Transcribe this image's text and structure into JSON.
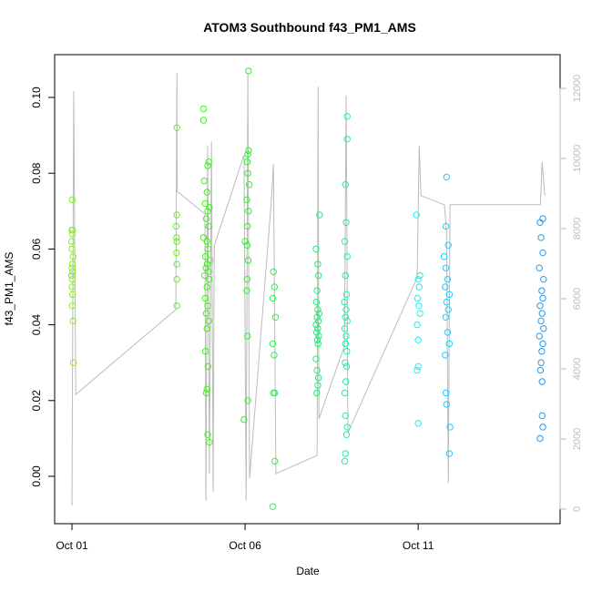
{
  "chart_data": {
    "type": "scatter",
    "title": "ATOM3 Southbound f43_PM1_AMS",
    "xlabel": "Date",
    "ylabel": "f43_PM1_AMS",
    "xlim": [
      -0.5,
      14.1
    ],
    "ylim": [
      -0.0125,
      0.1113
    ],
    "y2lim": [
      -416,
      12961
    ],
    "xticks": [
      {
        "value": 0,
        "label": "Oct 01"
      },
      {
        "value": 5,
        "label": "Oct 06"
      },
      {
        "value": 10,
        "label": "Oct 11"
      }
    ],
    "yticks": [
      {
        "value": 0,
        "label": "0.00"
      },
      {
        "value": 0.02,
        "label": "0.02"
      },
      {
        "value": 0.04,
        "label": "0.04"
      },
      {
        "value": 0.06,
        "label": "0.06"
      },
      {
        "value": 0.08,
        "label": "0.08"
      },
      {
        "value": 0.1,
        "label": "0.10"
      }
    ],
    "y2ticks": [
      0,
      2000,
      4000,
      6000,
      8000,
      10000,
      12000
    ],
    "series": [
      {
        "color": "#88ee22",
        "x": [
          0.01,
          0.0,
          0.02,
          0.01,
          -0.01,
          0.0,
          0.03,
          0.01,
          0.0,
          0.02,
          -0.01,
          0.01,
          0.0,
          0.02,
          0.01,
          0.03,
          0.04
        ],
        "values": [
          0.073,
          0.065,
          0.065,
          0.064,
          0.062,
          0.06,
          0.058,
          0.056,
          0.055,
          0.054,
          0.053,
          0.052,
          0.05,
          0.048,
          0.045,
          0.041,
          0.03
        ]
      },
      {
        "color": "#66ee22",
        "x": [
          3.03,
          3.03,
          3.01,
          3.02,
          3.03,
          3.02,
          3.03,
          3.03,
          3.03
        ],
        "values": [
          0.092,
          0.069,
          0.066,
          0.063,
          0.062,
          0.059,
          0.056,
          0.052,
          0.045
        ]
      },
      {
        "color": "#44ee22",
        "x": [
          3.8,
          3.8,
          3.95,
          3.92,
          3.82,
          3.9,
          3.85,
          3.97,
          3.92,
          3.88,
          3.95,
          3.8,
          3.9,
          3.93,
          3.86,
          3.98,
          3.91,
          3.87,
          3.94,
          3.83,
          3.96,
          3.9,
          3.85,
          3.92,
          3.88,
          3.95,
          3.9,
          3.86,
          3.93,
          3.9,
          3.88,
          3.92,
          3.97
        ],
        "values": [
          0.097,
          0.094,
          0.083,
          0.082,
          0.078,
          0.075,
          0.072,
          0.071,
          0.07,
          0.068,
          0.066,
          0.063,
          0.062,
          0.06,
          0.058,
          0.057,
          0.056,
          0.055,
          0.054,
          0.053,
          0.052,
          0.05,
          0.047,
          0.045,
          0.043,
          0.041,
          0.039,
          0.033,
          0.029,
          0.023,
          0.022,
          0.011,
          0.009
        ]
      },
      {
        "color": "#33ee33",
        "x": [
          5.1,
          5.1,
          5.08,
          5.06,
          5.08,
          5.12,
          5.05,
          5.1,
          5.07,
          5.0,
          5.06,
          5.09,
          5.06,
          5.05,
          5.07,
          5.08,
          4.97
        ],
        "values": [
          0.107,
          0.086,
          0.085,
          0.083,
          0.08,
          0.077,
          0.073,
          0.07,
          0.066,
          0.062,
          0.061,
          0.057,
          0.052,
          0.049,
          0.037,
          0.02,
          0.015
        ]
      },
      {
        "color": "#33ee55",
        "x": [
          5.82,
          5.85,
          5.8,
          5.88,
          5.8,
          5.84,
          5.82,
          5.86,
          5.86,
          5.8
        ],
        "values": [
          0.054,
          0.05,
          0.047,
          0.042,
          0.035,
          0.032,
          0.022,
          0.022,
          0.004,
          -0.008
        ]
      },
      {
        "color": "#22ee77",
        "x": [
          7.15,
          7.05,
          7.1,
          7.12,
          7.08,
          7.06,
          7.1,
          7.14,
          7.08,
          7.12,
          7.05,
          7.1,
          7.07,
          7.13,
          7.09,
          7.11,
          7.05,
          7.08,
          7.12,
          7.1,
          7.07
        ],
        "values": [
          0.069,
          0.06,
          0.056,
          0.053,
          0.049,
          0.046,
          0.044,
          0.043,
          0.042,
          0.041,
          0.04,
          0.039,
          0.038,
          0.037,
          0.036,
          0.035,
          0.031,
          0.028,
          0.026,
          0.024,
          0.022
        ]
      },
      {
        "color": "#22eeaa",
        "x": [
          7.95,
          7.95,
          7.9,
          7.92,
          7.88,
          7.95,
          7.9,
          7.93,
          7.87,
          7.92,
          7.9,
          7.95,
          7.88,
          7.92,
          7.9,
          7.94,
          7.89,
          7.93,
          7.91,
          7.88,
          7.9,
          7.95,
          7.93,
          7.9,
          7.88
        ],
        "values": [
          0.095,
          0.089,
          0.077,
          0.067,
          0.062,
          0.058,
          0.053,
          0.048,
          0.046,
          0.044,
          0.042,
          0.041,
          0.039,
          0.037,
          0.035,
          0.033,
          0.03,
          0.029,
          0.025,
          0.022,
          0.016,
          0.013,
          0.011,
          0.006,
          0.004
        ]
      },
      {
        "color": "#22eeee",
        "x": [
          9.95,
          10.05,
          10.0,
          10.03,
          9.98,
          10.02,
          10.05,
          9.97,
          10.0,
          10.0,
          9.97,
          10.0
        ],
        "values": [
          0.069,
          0.053,
          0.052,
          0.05,
          0.047,
          0.045,
          0.043,
          0.04,
          0.036,
          0.029,
          0.028,
          0.014
        ]
      },
      {
        "color": "#22ccff",
        "x": [
          10.82,
          10.8,
          10.87,
          10.75,
          10.8,
          10.85,
          10.78,
          10.9,
          10.82,
          10.87,
          10.8,
          10.85,
          10.9,
          10.78,
          10.8,
          10.82,
          10.92,
          10.9
        ],
        "values": [
          0.079,
          0.066,
          0.061,
          0.058,
          0.055,
          0.052,
          0.05,
          0.048,
          0.046,
          0.044,
          0.042,
          0.038,
          0.035,
          0.032,
          0.022,
          0.019,
          0.013,
          0.006
        ]
      },
      {
        "color": "#2299ee",
        "x": [
          13.6,
          13.52,
          13.55,
          13.6,
          13.5,
          13.62,
          13.57,
          13.6,
          13.52,
          13.58,
          13.55,
          13.62,
          13.5,
          13.6,
          13.57,
          13.55,
          13.53,
          13.58,
          13.58,
          13.6,
          13.52
        ],
        "values": [
          0.068,
          0.067,
          0.063,
          0.059,
          0.055,
          0.052,
          0.049,
          0.047,
          0.045,
          0.043,
          0.041,
          0.039,
          0.037,
          0.035,
          0.033,
          0.03,
          0.028,
          0.025,
          0.016,
          0.013,
          0.01
        ]
      },
      {
        "type": "line",
        "axis": "y2",
        "color": "#bbbbbb",
        "x": [
          0,
          0.05,
          0.11,
          3.0,
          3.03,
          3.04,
          3.84,
          3.87,
          3.92,
          3.97,
          4.03,
          4.08,
          4.11,
          4.97,
          5.03,
          5.08,
          5.13,
          5.76,
          5.82,
          5.89,
          7.08,
          7.11,
          7.13,
          7.87,
          7.92,
          7.97,
          9.97,
          10.03,
          10.08,
          10.76,
          10.82,
          10.87,
          10.92,
          13.53,
          13.58,
          13.66
        ],
        "values": [
          104,
          11920,
          3270,
          5690,
          12440,
          9060,
          8420,
          234,
          10360,
          1010,
          10490,
          490,
          7510,
          10100,
          234,
          12440,
          880,
          8800,
          9840,
          1010,
          1530,
          12050,
          2570,
          4650,
          11790,
          2180,
          6600,
          10360,
          8940,
          8680,
          7900,
          750,
          8680,
          8680,
          9900,
          8940
        ]
      }
    ]
  }
}
